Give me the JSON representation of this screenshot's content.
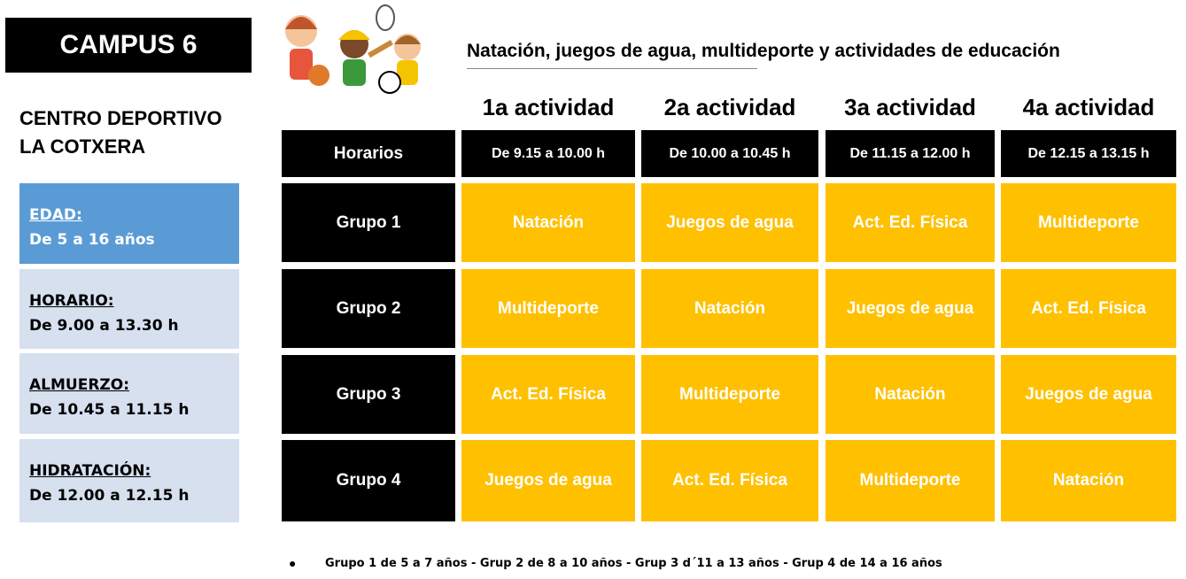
{
  "header": {
    "campus": "CAMPUS 6",
    "venue": [
      "CENTRO DEPORTIVO",
      "LA COTXERA"
    ],
    "subtitle": "Natación, juegos de agua, multideporte y actividades de educación"
  },
  "info": [
    {
      "label": "EDAD:",
      "value": "De 5 a 16 años"
    },
    {
      "label": "HORARIO:",
      "value": "De 9.00 a 13.30  h"
    },
    {
      "label": "ALMUERZO:",
      "value": "De 10.45 a 11.15 h"
    },
    {
      "label": "HIDRATACIÓN:",
      "value": "De 12.00 a 12.15 h"
    }
  ],
  "table": {
    "columns": [
      "1a actividad",
      "2a actividad",
      "3a actividad",
      "4a actividad"
    ],
    "schedule": {
      "label": "Horarios",
      "times": [
        "De 9.15  a 10.00 h",
        "De 10.00 a 10.45 h",
        "De 11.15 a 12.00 h",
        "De 12.15 a 13.15 h"
      ]
    },
    "rows": [
      {
        "label": "Grupo 1",
        "cells": [
          "Natación",
          "Juegos de agua",
          "Act. Ed. Física",
          "Multideporte"
        ]
      },
      {
        "label": "Grupo 2",
        "cells": [
          "Multideporte",
          "Natación",
          "Juegos de agua",
          "Act. Ed. Física"
        ]
      },
      {
        "label": "Grupo 3",
        "cells": [
          "Act. Ed. Física",
          "Multideporte",
          "Natación",
          "Juegos de agua"
        ]
      },
      {
        "label": "Grupo 4",
        "cells": [
          "Juegos de agua",
          "Act. Ed. Física",
          "Multideporte",
          "Natación"
        ]
      }
    ]
  },
  "footer": "Grupo 1 de 5 a 7 años - Grup 2 de 8 a 10 años - Grup 3 d´11 a 13 años - Grup 4 de 14 a 16 años"
}
